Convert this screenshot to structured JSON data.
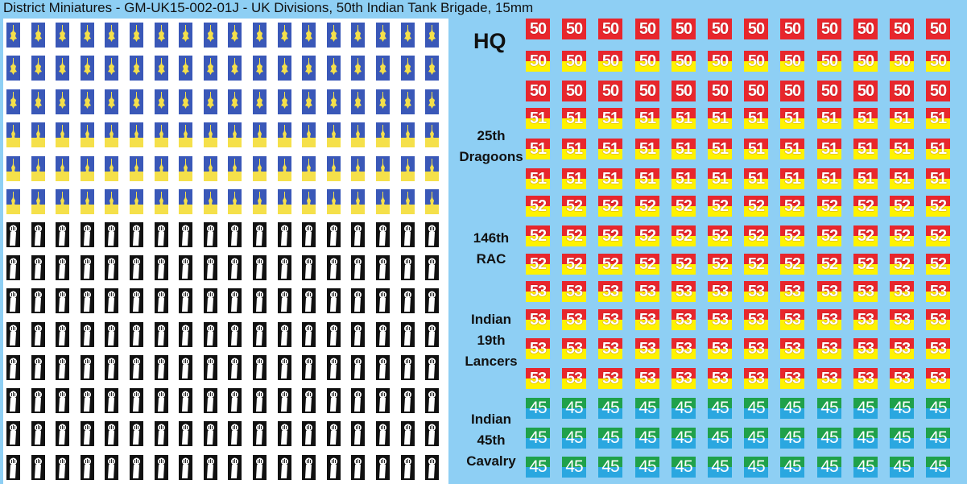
{
  "title": "District Miniatures - GM-UK15-002-01J - UK Divisions, 50th Indian Tank Brigade, 15mm",
  "hq_label": "HQ",
  "labels": [
    {
      "lines": [
        "25th",
        "Dragoons"
      ]
    },
    {
      "lines": [
        "146th",
        "RAC"
      ]
    },
    {
      "lines": [
        "Indian",
        "19th",
        "Lancers"
      ]
    },
    {
      "lines": [
        "Indian",
        "45th",
        "Cavalry"
      ]
    }
  ],
  "tile_numbers": [
    "50",
    "51",
    "52",
    "53",
    "45"
  ],
  "colors": {
    "background": "#8ecff4",
    "red": "#e8262c",
    "yellow": "#fff200",
    "green": "#1fa14a",
    "blue": "#2aa7e0",
    "emblem_blue": "#3a58b8",
    "emblem_black": "#111111"
  },
  "icons": {
    "blue_emblem": "tiger-head-insignia-icon",
    "black_emblem": "fist-insignia-icon"
  }
}
